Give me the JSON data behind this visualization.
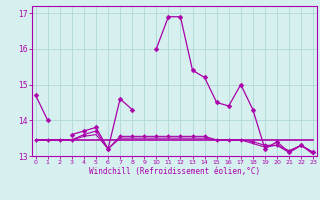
{
  "xlabel": "Windchill (Refroidissement éolien,°C)",
  "background_color": "#d6f0f0",
  "grid_color": "#b0d8d8",
  "line_color": "#aa00aa",
  "hours": [
    0,
    1,
    2,
    3,
    4,
    5,
    6,
    7,
    8,
    9,
    10,
    11,
    12,
    13,
    14,
    15,
    16,
    17,
    18,
    19,
    20,
    21,
    22,
    23
  ],
  "series1": [
    14.7,
    14.0,
    null,
    13.6,
    13.7,
    13.8,
    13.2,
    14.6,
    14.3,
    null,
    16.0,
    16.9,
    16.9,
    15.4,
    15.2,
    14.5,
    14.4,
    15.0,
    14.3,
    13.2,
    13.4,
    13.1,
    13.3,
    13.1
  ],
  "series2": [
    13.45,
    13.45,
    13.45,
    13.45,
    13.45,
    13.45,
    13.45,
    13.45,
    13.45,
    13.45,
    13.45,
    13.45,
    13.45,
    13.45,
    13.45,
    13.45,
    13.45,
    13.45,
    13.45,
    13.45,
    13.45,
    13.45,
    13.45,
    13.45
  ],
  "series3": [
    13.45,
    13.45,
    13.45,
    13.45,
    13.6,
    13.7,
    13.2,
    13.55,
    13.55,
    13.55,
    13.55,
    13.55,
    13.55,
    13.55,
    13.55,
    13.45,
    13.45,
    13.45,
    13.4,
    13.3,
    13.3,
    13.15,
    13.3,
    13.1
  ],
  "series4": [
    13.45,
    13.45,
    13.45,
    13.45,
    13.55,
    13.6,
    13.2,
    13.5,
    13.5,
    13.5,
    13.5,
    13.5,
    13.5,
    13.5,
    13.5,
    13.45,
    13.45,
    13.45,
    13.35,
    13.25,
    13.3,
    13.1,
    13.3,
    13.05
  ],
  "ylim": [
    13.0,
    17.2
  ],
  "yticks": [
    13,
    14,
    15,
    16,
    17
  ],
  "xticks": [
    0,
    1,
    2,
    3,
    4,
    5,
    6,
    7,
    8,
    9,
    10,
    11,
    12,
    13,
    14,
    15,
    16,
    17,
    18,
    19,
    20,
    21,
    22,
    23
  ]
}
